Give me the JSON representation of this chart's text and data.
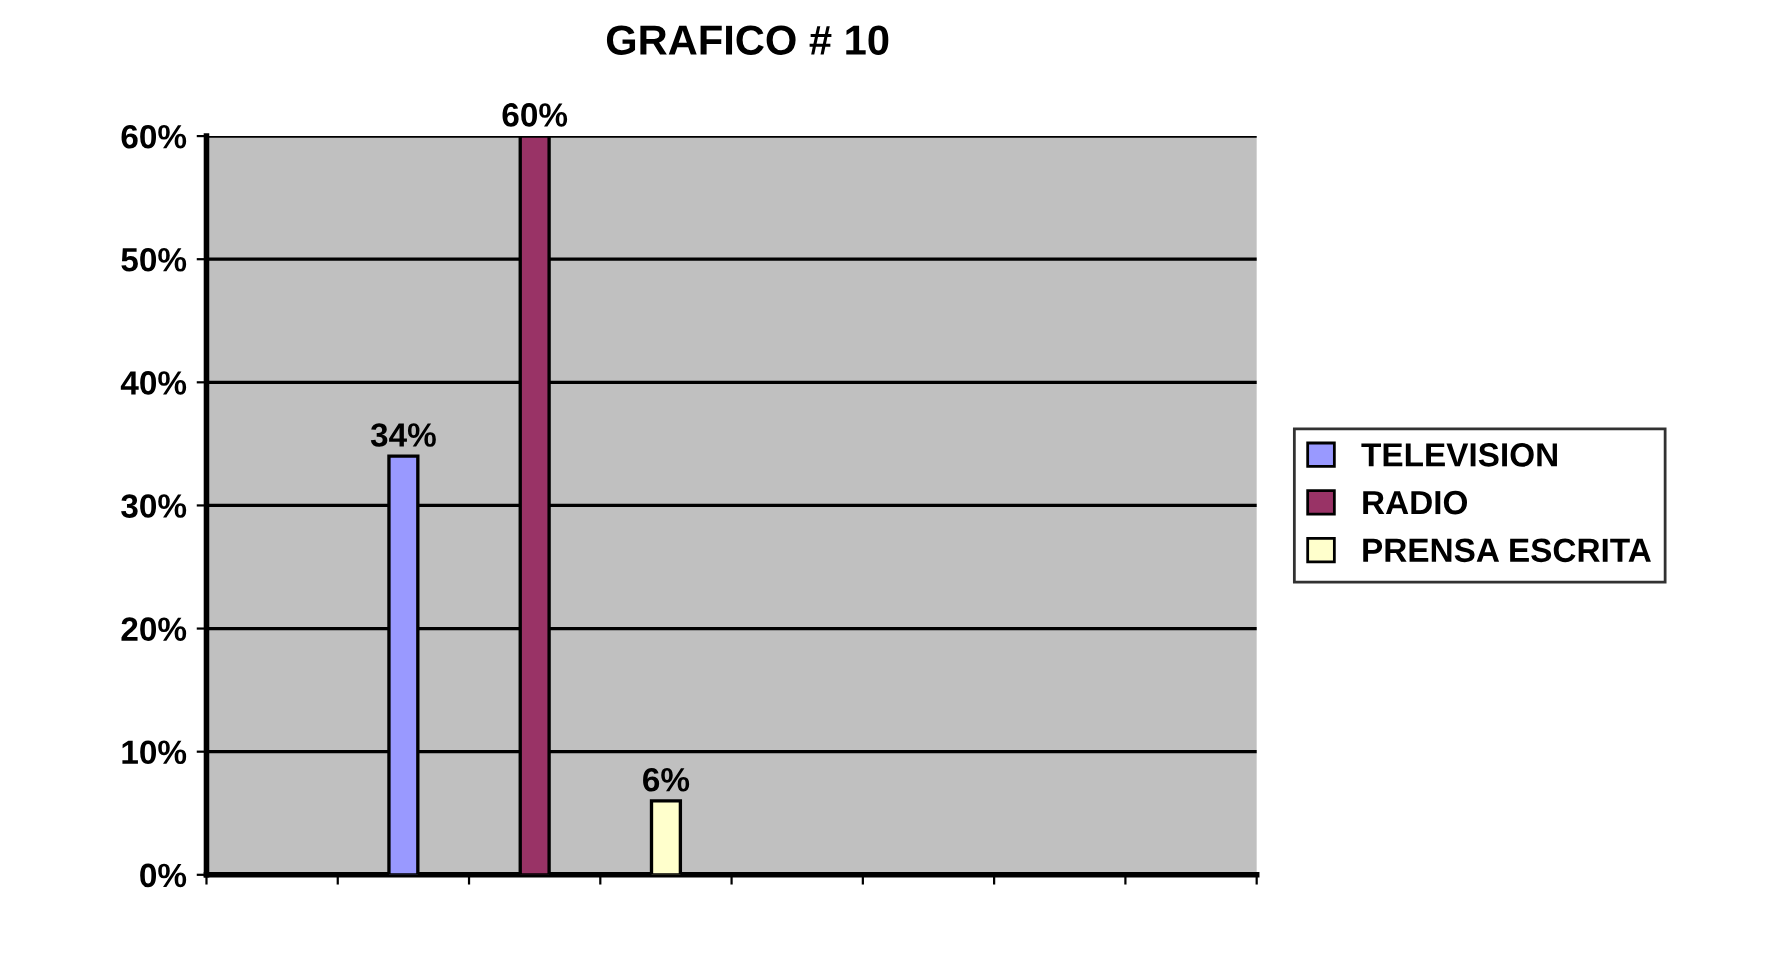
{
  "chart_data": {
    "type": "bar",
    "title": "GRAFICO # 10",
    "categories": [
      null,
      null,
      null,
      null,
      null,
      null,
      null,
      null
    ],
    "series": [
      {
        "name": "TELEVISION",
        "color": "#9999ff",
        "values": [
          null,
          34,
          null,
          null,
          null,
          null,
          null,
          null
        ],
        "value_labels": [
          null,
          "34%",
          null,
          null,
          null,
          null,
          null,
          null
        ]
      },
      {
        "name": "RADIO",
        "color": "#993366",
        "values": [
          null,
          null,
          60,
          null,
          null,
          null,
          null,
          null
        ],
        "value_labels": [
          null,
          null,
          "60%",
          null,
          null,
          null,
          null,
          null
        ]
      },
      {
        "name": "PRENSA ESCRITA",
        "color": "#ffffcc",
        "values": [
          null,
          null,
          null,
          6,
          null,
          null,
          null,
          null
        ],
        "value_labels": [
          null,
          null,
          null,
          "6%",
          null,
          null,
          null,
          null
        ]
      }
    ],
    "ylim": [
      0,
      60
    ],
    "yticks": [
      {
        "value": 0,
        "label": "0%"
      },
      {
        "value": 10,
        "label": "10%"
      },
      {
        "value": 20,
        "label": "20%"
      },
      {
        "value": 30,
        "label": "30%"
      },
      {
        "value": 40,
        "label": "40%"
      },
      {
        "value": 50,
        "label": "50%"
      },
      {
        "value": 60,
        "label": "60%"
      }
    ],
    "grid": "y",
    "legend": "right"
  }
}
